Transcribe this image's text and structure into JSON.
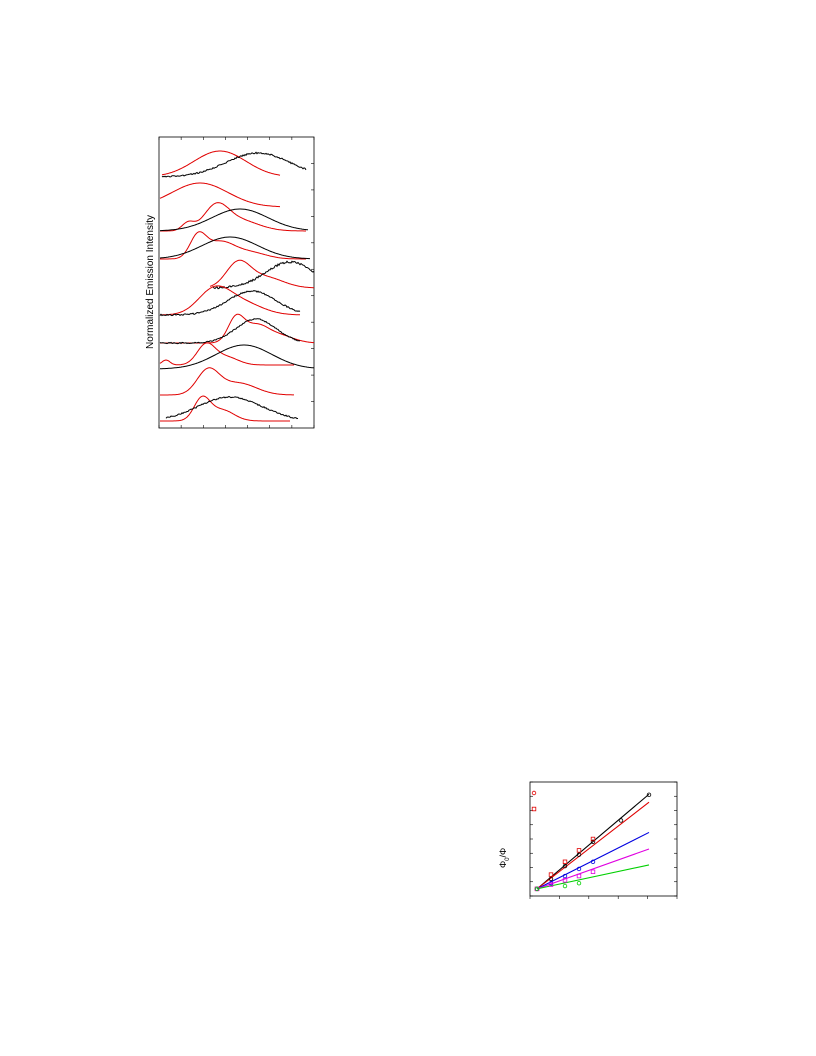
{
  "page": {
    "background": "#ffffff"
  },
  "chart_data": [
    {
      "type": "line",
      "title": "",
      "xlabel": "",
      "ylabel": "Normalized Emission Intensity",
      "stacked_traces": 11,
      "colors": {
        "absorption": "#e00000",
        "emission": "#000000"
      }
    },
    {
      "type": "scatter",
      "title": "",
      "ylabel_parts": [
        "Φ",
        "0",
        "/Φ"
      ],
      "xlabel": "",
      "series": [
        {
          "color": "#000000",
          "x": [
            0,
            1,
            2,
            3,
            4,
            6,
            8
          ],
          "y": [
            1.0,
            1.07,
            1.16,
            1.24,
            1.33,
            1.48,
            1.66
          ]
        },
        {
          "color": "#e00000",
          "x": [
            0,
            1,
            2,
            3,
            4
          ],
          "y": [
            1.0,
            1.1,
            1.19,
            1.27,
            1.35
          ]
        },
        {
          "color": "#0000e0",
          "x": [
            0,
            1,
            2,
            3,
            4
          ],
          "y": [
            1.0,
            1.04,
            1.09,
            1.14,
            1.19
          ]
        },
        {
          "color": "#e000e0",
          "x": [
            0,
            1,
            2,
            3,
            4
          ],
          "y": [
            1.0,
            1.03,
            1.06,
            1.09,
            1.12
          ]
        },
        {
          "color": "#00d000",
          "x": [
            0,
            2,
            3
          ],
          "y": [
            1.0,
            1.02,
            1.04
          ]
        }
      ],
      "fit_slopes": [
        0.083,
        0.076,
        0.0495,
        0.035,
        0.021
      ],
      "legend_markers": [
        {
          "shape": "circle",
          "color": "#e00000"
        },
        {
          "shape": "square",
          "color": "#e00000"
        }
      ],
      "xlim": [
        -0.5,
        10
      ],
      "ylim": [
        0.95,
        1.75
      ]
    }
  ]
}
